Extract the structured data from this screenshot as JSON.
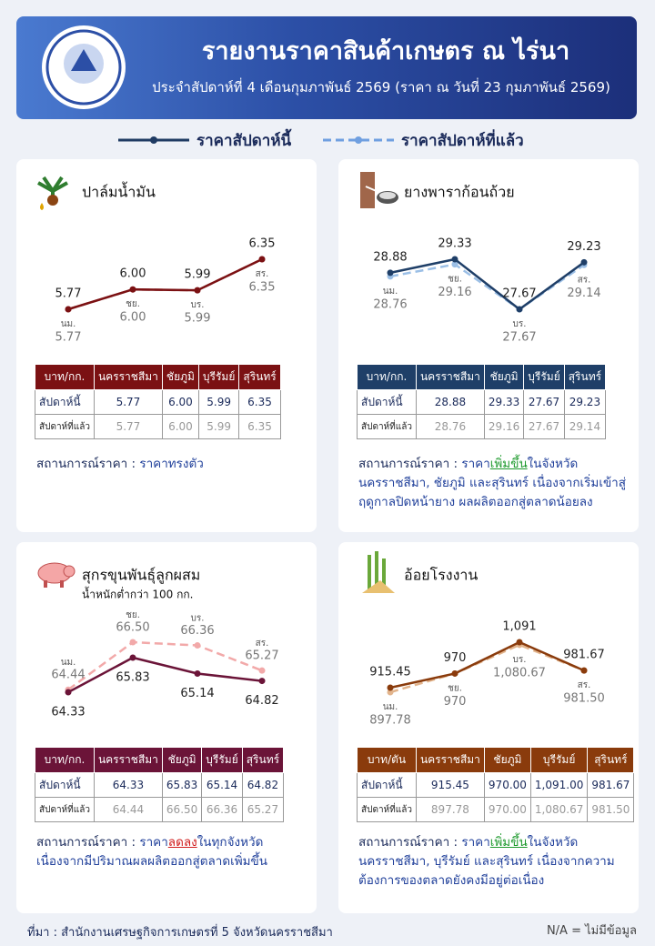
{
  "header": {
    "title": "รายงานราคาสินค้าเกษตร ณ ไร่นา",
    "subtitle": "ประจำสัปดาห์ที่ 4 เดือนกุมภาพันธ์ 2569 (ราคา ณ วันที่ 23 กุมภาพันธ์ 2569)"
  },
  "legend": [
    {
      "label": "ราคาสัปดาห์นี้",
      "color": "#1f3b63",
      "line_style": "solid"
    },
    {
      "label": "ราคาสัปดาห์ที่แล้ว",
      "color": "#6f9fe0",
      "line_style": "dashed"
    }
  ],
  "chart_data": [
    {
      "type": "line",
      "title": "ปาล์มน้ำมัน",
      "categories": [
        "นม.",
        "ชย.",
        "บร.",
        "สร."
      ],
      "series": [
        {
          "color": "#7b1113",
          "line_style": "solid",
          "values": [
            5.77,
            6.0,
            5.99,
            6.35
          ],
          "value_labels": [
            "5.77",
            "6.00",
            "5.99",
            "6.35"
          ]
        },
        {
          "color": "#c9787a",
          "line_style": "dashed",
          "values": [
            5.77,
            6.0,
            5.99,
            6.35
          ],
          "value_labels": [
            "5.77",
            "6.00",
            "5.99",
            "6.35"
          ]
        }
      ]
    },
    {
      "type": "line",
      "title": "ยางพาราก้อนถ้วย",
      "categories": [
        "นม.",
        "ชย.",
        "บร.",
        "สร."
      ],
      "series": [
        {
          "color": "#1f3f68",
          "line_style": "solid",
          "values": [
            28.88,
            29.33,
            27.67,
            29.23
          ]
        },
        {
          "color": "#9bbfe6",
          "line_style": "dashed",
          "values": [
            28.76,
            29.16,
            27.67,
            29.14
          ]
        }
      ]
    },
    {
      "type": "line",
      "title": "สุกรขุนพันธุ์ลูกผสม",
      "subtitle": "น้ำหนักต่ำกว่า 100 กก.",
      "categories": [
        "นม.",
        "ชย.",
        "บร.",
        "สร."
      ],
      "series": [
        {
          "color": "#6b1438",
          "line_style": "solid",
          "values": [
            64.33,
            65.83,
            65.14,
            64.82
          ]
        },
        {
          "color": "#f2a9a9",
          "line_style": "dashed",
          "values": [
            64.44,
            66.5,
            66.36,
            65.27
          ],
          "value_labels": [
            "64.44",
            "66.50",
            "66.36",
            "65.27"
          ]
        }
      ]
    },
    {
      "type": "line",
      "title": "อ้อยโรงงาน",
      "categories": [
        "นม.",
        "ชย.",
        "บร.",
        "สร."
      ],
      "series": [
        {
          "color": "#8a3b0c",
          "line_style": "solid",
          "values": [
            915.45,
            970,
            1091,
            981.67
          ],
          "value_labels": [
            "915.45",
            "970",
            "1,091",
            "981.67"
          ]
        },
        {
          "color": "#e2b48c",
          "line_style": "dashed",
          "values": [
            897.78,
            970,
            1080.67,
            981.5
          ],
          "value_labels": [
            "897.78",
            "970",
            "1,080.67",
            "981.50"
          ]
        }
      ]
    }
  ],
  "panels": [
    {
      "table": {
        "header": [
          "บาท/กก.",
          "นครราชสีมา",
          "ชัยภูมิ",
          "บุรีรัมย์",
          "สุรินทร์"
        ],
        "rows": [
          [
            "สัปดาห์นี้",
            "5.77",
            "6.00",
            "5.99",
            "6.35"
          ],
          [
            "สัปดาห์ที่แล้ว",
            "5.77",
            "6.00",
            "5.99",
            "6.35"
          ]
        ]
      },
      "status_label": "สถานการณ์ราคา :",
      "status": [
        {
          "text": "ราคาทรงตัว",
          "style": "plain"
        }
      ]
    },
    {
      "table": {
        "header": [
          "บาท/กก.",
          "นครราชสีมา",
          "ชัยภูมิ",
          "บุรีรัมย์",
          "สุรินทร์"
        ],
        "rows": [
          [
            "สัปดาห์นี้",
            "28.88",
            "29.33",
            "27.67",
            "29.23"
          ],
          [
            "สัปดาห์ที่แล้ว",
            "28.76",
            "29.16",
            "27.67",
            "29.14"
          ]
        ]
      },
      "status_label": "สถานการณ์ราคา :",
      "status": [
        {
          "text": "ราคา",
          "style": "plain"
        },
        {
          "text": "เพิ่มขึ้น",
          "style": "up"
        },
        {
          "text": "ในจังหวัดนครราชสีมา, ชัยภูมิ และสุรินทร์ เนื่องจากเริ่มเข้าสู่ฤดูกาลปิดหน้ายาง ผลผลิตออกสู่ตลาดน้อยลง",
          "style": "plain"
        }
      ]
    },
    {
      "table": {
        "header": [
          "บาท/กก.",
          "นครราชสีมา",
          "ชัยภูมิ",
          "บุรีรัมย์",
          "สุรินทร์"
        ],
        "rows": [
          [
            "สัปดาห์นี้",
            "64.33",
            "65.83",
            "65.14",
            "64.82"
          ],
          [
            "สัปดาห์ที่แล้ว",
            "64.44",
            "66.50",
            "66.36",
            "65.27"
          ]
        ]
      },
      "status_label": "สถานการณ์ราคา :",
      "status": [
        {
          "text": "ราคา",
          "style": "plain"
        },
        {
          "text": "ลดลง",
          "style": "down"
        },
        {
          "text": "ในทุกจังหวัด เนื่องจากมีปริมาณผลผลิตออกสู่ตลาดเพิ่มขึ้น",
          "style": "plain"
        }
      ]
    },
    {
      "table": {
        "header": [
          "บาท/ตัน",
          "นครราชสีมา",
          "ชัยภูมิ",
          "บุรีรัมย์",
          "สุรินทร์"
        ],
        "rows": [
          [
            "สัปดาห์นี้",
            "915.45",
            "970.00",
            "1,091.00",
            "981.67"
          ],
          [
            "สัปดาห์ที่แล้ว",
            "897.78",
            "970.00",
            "1,080.67",
            "981.50"
          ]
        ]
      },
      "status_label": "สถานการณ์ราคา :",
      "status": [
        {
          "text": "ราคา",
          "style": "plain"
        },
        {
          "text": "เพิ่มขึ้น",
          "style": "up"
        },
        {
          "text": "ในจังหวัดนครราชสีมา, บุรีรัมย์ และสุรินทร์ เนื่องจากความต้องการของตลาดยังคงมีอยู่ต่อเนื่อง",
          "style": "plain"
        }
      ]
    }
  ],
  "footer": {
    "source": "ที่มา : สำนักงานเศรษฐกิจการเกษตรที่ 5 จังหวัดนครราชสีมา",
    "note": "N/A = ไม่มีข้อมูล"
  }
}
